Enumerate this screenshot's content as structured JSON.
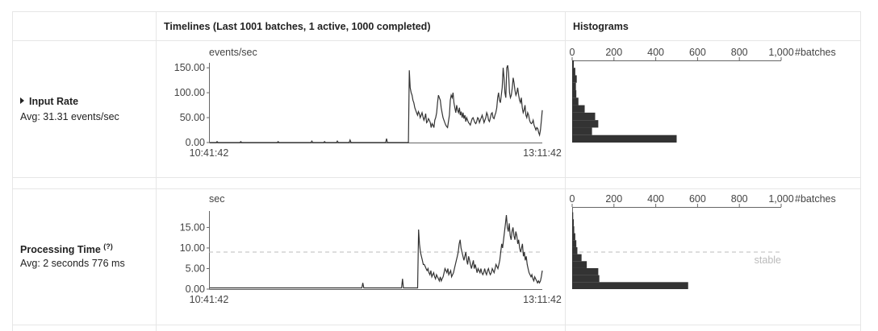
{
  "header": {
    "timelines": "Timelines (Last 1001 batches, 1 active, 1000 completed)",
    "histograms": "Histograms"
  },
  "input_rate": {
    "title": "Input Rate",
    "avg": "Avg: 31.31 events/sec",
    "timeline_unit": "events/sec",
    "histogram_unit": "#batches",
    "y_ticks": [
      "150.00",
      "100.00",
      "50.00",
      "0.00"
    ],
    "x_ticks": [
      "10:41:42",
      "13:11:42"
    ],
    "hist_ticks": [
      "0",
      "200",
      "400",
      "600",
      "800",
      "1,000"
    ]
  },
  "processing_time": {
    "title": "Processing Time",
    "help": "(?)",
    "avg": "Avg: 2 seconds 776 ms",
    "timeline_unit": "sec",
    "histogram_unit": "#batches",
    "y_ticks": [
      "15.00",
      "10.00",
      "5.00",
      "0.00"
    ],
    "x_ticks": [
      "10:41:42",
      "13:11:42"
    ],
    "hist_ticks": [
      "0",
      "200",
      "400",
      "600",
      "800",
      "1,000"
    ],
    "stable_label": "stable"
  },
  "chart_data": [
    {
      "type": "line",
      "ylabel": "events/sec",
      "ylim": [
        0,
        160
      ],
      "x_range": [
        "10:41:42",
        "13:11:42"
      ],
      "series": [
        {
          "values": [
            0,
            0,
            0,
            0,
            0,
            0,
            0,
            0,
            2,
            0,
            0,
            0,
            0,
            0,
            0,
            0,
            0,
            0,
            0,
            0,
            0,
            0,
            0,
            0,
            0,
            0,
            0,
            0,
            0,
            0,
            0,
            0,
            0,
            0,
            2,
            0,
            0,
            0,
            0,
            0,
            0,
            0,
            0,
            0,
            0,
            0,
            0,
            0,
            0,
            0,
            0,
            0,
            0,
            0,
            0,
            0,
            0,
            0,
            0,
            0,
            0,
            0,
            0,
            0,
            0,
            0,
            0,
            0,
            0,
            0,
            0,
            0,
            0,
            0,
            0,
            2,
            0,
            0,
            0,
            0,
            0,
            0,
            0,
            0,
            0,
            0,
            0,
            0,
            0,
            0,
            0,
            0,
            0,
            0,
            0,
            0,
            0,
            0,
            0,
            0,
            0,
            0,
            0,
            0,
            0,
            0,
            0,
            0,
            0,
            0,
            0,
            0,
            3,
            0,
            0,
            0,
            0,
            0,
            0,
            0,
            0,
            0,
            0,
            0,
            0,
            0,
            2,
            0,
            0,
            0,
            0,
            0,
            0,
            0,
            0,
            0,
            0,
            0,
            0,
            0,
            3,
            0,
            0,
            0,
            0,
            0,
            0,
            0,
            0,
            0,
            0,
            0,
            0,
            0,
            5,
            0,
            0,
            0,
            0,
            0,
            0,
            0,
            0,
            0,
            0,
            0,
            0,
            0,
            0,
            0,
            0,
            0,
            0,
            0,
            0,
            0,
            0,
            0,
            0,
            0,
            0,
            0,
            0,
            0,
            0,
            0,
            0,
            0,
            0,
            0,
            0,
            0,
            0,
            0,
            8,
            0,
            0,
            0,
            0,
            0,
            0,
            0,
            0,
            0,
            0,
            0,
            0,
            0,
            0,
            0,
            0,
            0,
            0,
            0,
            0,
            0,
            0,
            0,
            0,
            145,
            110,
            100,
            95,
            85,
            80,
            70,
            65,
            60,
            55,
            62,
            58,
            50,
            55,
            60,
            52,
            45,
            50,
            58,
            40,
            42,
            48,
            45,
            40,
            30,
            38,
            35,
            30,
            45,
            50,
            60,
            80,
            95,
            90,
            85,
            70,
            60,
            50,
            45,
            40,
            35,
            32,
            30,
            42,
            55,
            85,
            95,
            90,
            100,
            80,
            70,
            60,
            75,
            65,
            60,
            70,
            55,
            62,
            50,
            60,
            48,
            55,
            42,
            50,
            45,
            40,
            38,
            35,
            42,
            48,
            50,
            45,
            40,
            38,
            42,
            50,
            48,
            40,
            45,
            50,
            55,
            48,
            40,
            45,
            50,
            60,
            55,
            45,
            42,
            50,
            58,
            60,
            50,
            48,
            55,
            60,
            70,
            90,
            100,
            85,
            80,
            95,
            110,
            150,
            130,
            100,
            90,
            150,
            155,
            140,
            100,
            90,
            95,
            110,
            130,
            120,
            105,
            95,
            100,
            110,
            95,
            85,
            80,
            90,
            70,
            60,
            65,
            75,
            55,
            50,
            60,
            55,
            45,
            40,
            38,
            40,
            45,
            35,
            30,
            25,
            30,
            28,
            20,
            15,
            25,
            45,
            65
          ]
        }
      ]
    },
    {
      "type": "bar",
      "xlabel": "#batches",
      "xlim": [
        0,
        1000
      ],
      "bin_edges": [
        0,
        15,
        30,
        45,
        60,
        75,
        90,
        105,
        120,
        135,
        150,
        165
      ],
      "values": [
        500,
        95,
        125,
        110,
        60,
        30,
        20,
        18,
        22,
        15,
        8
      ]
    },
    {
      "type": "line",
      "ylabel": "sec",
      "ylim": [
        0,
        19
      ],
      "x_range": [
        "10:41:42",
        "13:11:42"
      ],
      "stable_threshold": 9,
      "series": [
        {
          "values": [
            0.3,
            0.3,
            0.3,
            0.3,
            0.3,
            0.3,
            0.3,
            0.3,
            0.3,
            0.3,
            0.3,
            0.3,
            0.3,
            0.3,
            0.3,
            0.3,
            0.3,
            0.3,
            0.3,
            0.3,
            0.3,
            0.3,
            0.3,
            0.3,
            0.3,
            0.3,
            0.3,
            0.3,
            0.3,
            0.3,
            0.3,
            0.3,
            0.3,
            0.3,
            0.3,
            0.3,
            0.3,
            0.3,
            0.3,
            0.3,
            0.3,
            0.3,
            0.3,
            0.3,
            0.3,
            0.3,
            0.3,
            0.3,
            0.3,
            0.3,
            0.3,
            0.3,
            0.3,
            0.3,
            0.3,
            0.3,
            0.3,
            0.3,
            0.3,
            0.3,
            0.3,
            0.3,
            0.3,
            0.3,
            0.3,
            0.3,
            0.3,
            0.3,
            0.3,
            0.3,
            0.3,
            0.3,
            0.3,
            0.3,
            0.3,
            0.3,
            0.3,
            0.3,
            0.3,
            0.3,
            0.3,
            0.3,
            0.3,
            0.3,
            0.3,
            0.3,
            0.3,
            0.3,
            0.3,
            0.3,
            0.3,
            0.3,
            0.3,
            0.3,
            0.3,
            0.3,
            0.3,
            0.3,
            0.3,
            0.3,
            0.3,
            0.3,
            0.3,
            0.3,
            0.3,
            0.3,
            0.3,
            0.3,
            0.3,
            0.3,
            0.3,
            0.3,
            0.3,
            0.3,
            0.3,
            0.3,
            0.3,
            0.3,
            0.3,
            0.3,
            0.3,
            0.3,
            0.3,
            0.3,
            0.3,
            0.3,
            0.3,
            0.3,
            0.3,
            0.3,
            0.3,
            0.3,
            0.3,
            0.3,
            0.3,
            0.3,
            0.3,
            0.3,
            0.3,
            0.3,
            0.3,
            0.3,
            0.3,
            0.3,
            0.3,
            0.3,
            0.3,
            0.3,
            0.3,
            0.3,
            0.3,
            0.3,
            0.3,
            0.3,
            0.3,
            0.3,
            0.3,
            0.3,
            0.3,
            0.3,
            0.3,
            0.3,
            1.5,
            0.3,
            0.3,
            0.3,
            0.3,
            0.3,
            0.3,
            0.3,
            0.3,
            0.3,
            0.3,
            0.3,
            0.3,
            0.3,
            0.3,
            0.3,
            0.3,
            0.3,
            0.3,
            0.3,
            0.3,
            0.3,
            0.3,
            0.3,
            0.3,
            0.3,
            0.3,
            0.3,
            0.3,
            0.3,
            0.3,
            0.3,
            0.3,
            0.3,
            0.3,
            0.3,
            0.3,
            0.3,
            0.3,
            0.3,
            0.3,
            0.3,
            2.5,
            0.3,
            0.3,
            0.3,
            0.3,
            0.3,
            0.3,
            0.3,
            0.3,
            0.3,
            0.3,
            0.3,
            0.3,
            0.3,
            0.3,
            0.3,
            0.3,
            14.5,
            11,
            9,
            8,
            7,
            6,
            6,
            5.5,
            5,
            4.5,
            5,
            4,
            3.5,
            4.5,
            3,
            3.5,
            4,
            3,
            2.5,
            3.5,
            3,
            2.5,
            2,
            3,
            2,
            2.5,
            3,
            4,
            5,
            4.5,
            4,
            5,
            3.5,
            4,
            4.5,
            3,
            3.5,
            4,
            5,
            6,
            7,
            8,
            9,
            11,
            12,
            10,
            9,
            8,
            7,
            8,
            9,
            7,
            6,
            8,
            7,
            6,
            5,
            6,
            7,
            5,
            6,
            5,
            4,
            5,
            4.5,
            4,
            5,
            4,
            3.5,
            4,
            5,
            4,
            3.5,
            4.5,
            5,
            4,
            3.5,
            4,
            5,
            4.5,
            4,
            5,
            6,
            5.5,
            5,
            6,
            7,
            9,
            11,
            10,
            12,
            14,
            16,
            18,
            15,
            14,
            16,
            13,
            12,
            14,
            15,
            13,
            12,
            14,
            13,
            11,
            12,
            10,
            9,
            10,
            11,
            8,
            9,
            7,
            8,
            6,
            5,
            4,
            3.5,
            3,
            3.5,
            2.5,
            2,
            3,
            2.5,
            2,
            1.5,
            2,
            1.5,
            2,
            3,
            4.5
          ]
        }
      ]
    },
    {
      "type": "bar",
      "xlabel": "#batches",
      "xlim": [
        0,
        1000
      ],
      "bin_edges": [
        0,
        1.7,
        3.4,
        5.1,
        6.8,
        8.5,
        10.2,
        11.9,
        13.6,
        15.3,
        17,
        18.7
      ],
      "values": [
        555,
        130,
        125,
        70,
        45,
        25,
        20,
        15,
        10,
        8,
        5
      ]
    }
  ]
}
